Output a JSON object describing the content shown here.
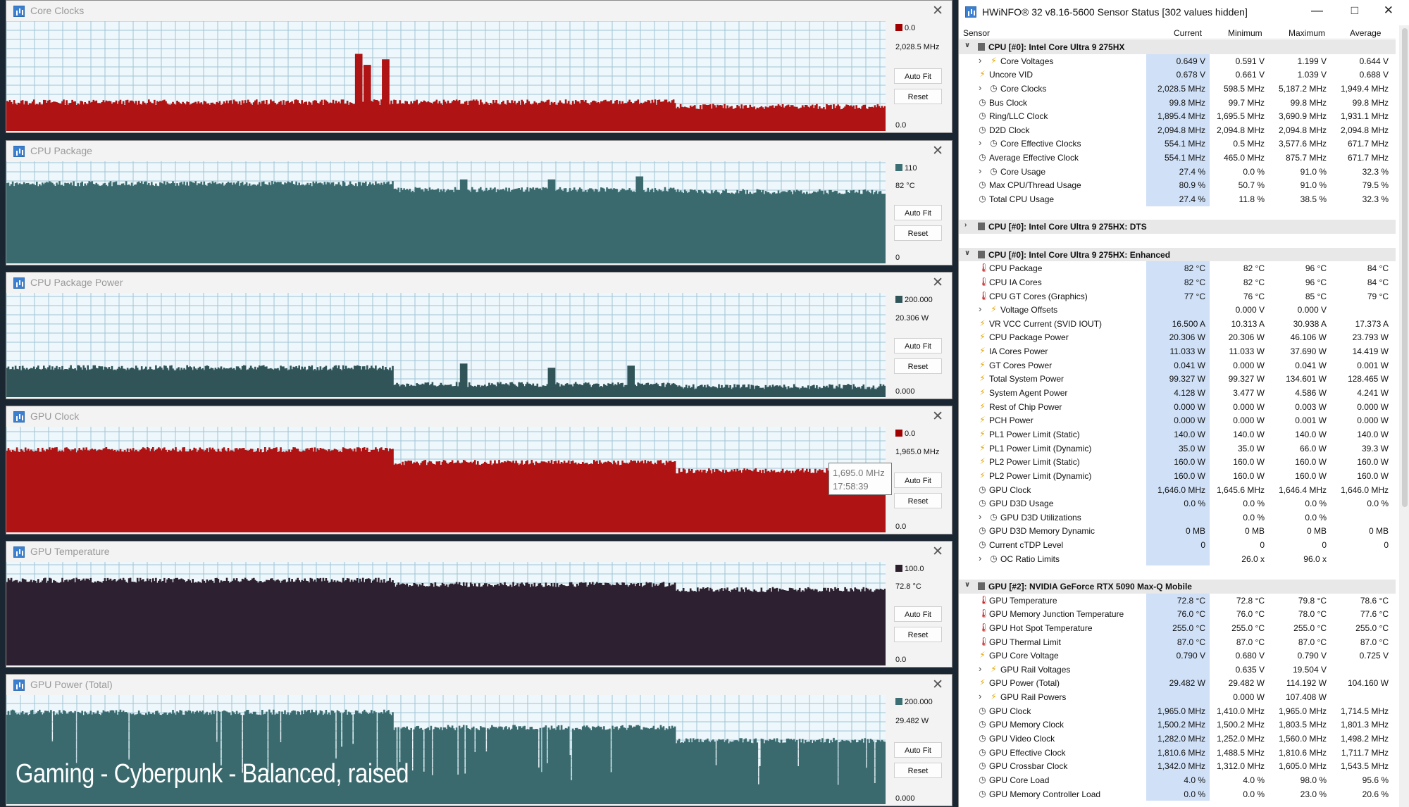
{
  "graphs": [
    {
      "id": "g1",
      "title": "Core Clocks",
      "color": "#a80d0d",
      "fill": "#b01313",
      "bg": "#a0c4d6",
      "max": "0.0",
      "current": "2,028.5 MHz",
      "min": "0.0",
      "swatch": "#a00000",
      "levels": [
        0.26,
        0.26,
        0.22
      ],
      "spikes": [
        [
          0.4,
          0.7
        ],
        [
          0.41,
          0.6
        ],
        [
          0.43,
          0.65
        ]
      ]
    },
    {
      "id": "g2",
      "title": "CPU Package",
      "color": "#3c6f73",
      "fill": "#3b6a6e",
      "bg": "#a0c4d6",
      "max": "110",
      "current": "82 °C",
      "min": "0",
      "swatch": "#3c6f73",
      "levels": [
        0.78,
        0.72,
        0.7
      ],
      "spikes": [
        [
          0.52,
          0.82
        ],
        [
          0.62,
          0.82
        ],
        [
          0.72,
          0.85
        ]
      ]
    },
    {
      "id": "g3",
      "title": "CPU Package Power",
      "color": "#2f5559",
      "fill": "#305458",
      "bg": "#a0c4d6",
      "max": "200.000",
      "current": "20.306 W",
      "min": "0.000",
      "swatch": "#2f5559",
      "levels": [
        0.28,
        0.12,
        0.1
      ],
      "spikes": [
        [
          0.52,
          0.32
        ],
        [
          0.62,
          0.28
        ],
        [
          0.71,
          0.3
        ]
      ]
    },
    {
      "id": "g4",
      "title": "GPU Clock",
      "color": "#a80d0d",
      "fill": "#b01313",
      "bg": "#a0c4d6",
      "max": "0.0",
      "current": "1,965.0 MHz",
      "min": "0.0",
      "swatch": "#a00000",
      "levels": [
        0.78,
        0.66,
        0.58
      ],
      "spikes": []
    },
    {
      "id": "g5",
      "title": "GPU Temperature",
      "color": "#2c1f2c",
      "fill": "#2d2030",
      "bg": "#a0c4d6",
      "max": "100.0",
      "current": "72.8 °C",
      "min": "0.0",
      "swatch": "#2c1f2c",
      "levels": [
        0.82,
        0.78,
        0.73
      ],
      "spikes": []
    },
    {
      "id": "g6",
      "title": "GPU Power (Total)",
      "color": "#3c6f73",
      "fill": "#3b6a6e",
      "bg": "#a0c4d6",
      "max": "200.000",
      "current": "29.482 W",
      "min": "0.000",
      "swatch": "#3c6f73",
      "levels": [
        0.84,
        0.7,
        0.58
      ],
      "spikes": []
    }
  ],
  "buttons": {
    "autofit": "Auto Fit",
    "reset": "Reset"
  },
  "overlay_text": "Gaming - Cyberpunk - Balanced, raised",
  "tooltip": {
    "value": "1,695.0 MHz",
    "time": "17:58:39"
  },
  "sensor_window": {
    "title": "HWiNFO® 32 v8.16-5600 Sensor Status [302 values hidden]",
    "columns": {
      "sensor": "Sensor",
      "current": "Current",
      "minimum": "Minimum",
      "maximum": "Maximum",
      "average": "Average"
    },
    "rows": [
      {
        "t": "hdr",
        "exp": "v",
        "name": "CPU [#0]: Intel Core Ultra 9 275HX"
      },
      {
        "t": "row",
        "exp": ">",
        "icon": "bolt",
        "indent": 2,
        "name": "Core Voltages",
        "cur": "0.649 V",
        "min": "0.591 V",
        "max": "1.199 V",
        "avg": "0.644 V"
      },
      {
        "t": "row",
        "icon": "bolt",
        "indent": 1,
        "name": "Uncore VID",
        "cur": "0.678 V",
        "min": "0.661 V",
        "max": "1.039 V",
        "avg": "0.688 V"
      },
      {
        "t": "row",
        "exp": ">",
        "icon": "clock",
        "indent": 2,
        "name": "Core Clocks",
        "cur": "2,028.5 MHz",
        "min": "598.5 MHz",
        "max": "5,187.2 MHz",
        "avg": "1,949.4 MHz"
      },
      {
        "t": "row",
        "icon": "clock",
        "indent": 1,
        "name": "Bus Clock",
        "cur": "99.8 MHz",
        "min": "99.7 MHz",
        "max": "99.8 MHz",
        "avg": "99.8 MHz"
      },
      {
        "t": "row",
        "icon": "clock",
        "indent": 1,
        "name": "Ring/LLC Clock",
        "cur": "1,895.4 MHz",
        "min": "1,695.5 MHz",
        "max": "3,690.9 MHz",
        "avg": "1,931.1 MHz"
      },
      {
        "t": "row",
        "icon": "clock",
        "indent": 1,
        "name": "D2D Clock",
        "cur": "2,094.8 MHz",
        "min": "2,094.8 MHz",
        "max": "2,094.8 MHz",
        "avg": "2,094.8 MHz"
      },
      {
        "t": "row",
        "exp": ">",
        "icon": "clock",
        "indent": 2,
        "name": "Core Effective Clocks",
        "cur": "554.1 MHz",
        "min": "0.5 MHz",
        "max": "3,577.6 MHz",
        "avg": "671.7 MHz"
      },
      {
        "t": "row",
        "icon": "clock",
        "indent": 1,
        "name": "Average Effective Clock",
        "cur": "554.1 MHz",
        "min": "465.0 MHz",
        "max": "875.7 MHz",
        "avg": "671.7 MHz"
      },
      {
        "t": "row",
        "exp": ">",
        "icon": "clock",
        "indent": 2,
        "name": "Core Usage",
        "cur": "27.4 %",
        "min": "0.0 %",
        "max": "91.0 %",
        "avg": "32.3 %"
      },
      {
        "t": "row",
        "icon": "clock",
        "indent": 1,
        "name": "Max CPU/Thread Usage",
        "cur": "80.9 %",
        "min": "50.7 %",
        "max": "91.0 %",
        "avg": "79.5 %"
      },
      {
        "t": "row",
        "icon": "clock",
        "indent": 1,
        "name": "Total CPU Usage",
        "cur": "27.4 %",
        "min": "11.8 %",
        "max": "38.5 %",
        "avg": "32.3 %"
      },
      {
        "t": "blank"
      },
      {
        "t": "hdr",
        "exp": ">",
        "name": "CPU [#0]: Intel Core Ultra 9 275HX: DTS"
      },
      {
        "t": "blank"
      },
      {
        "t": "hdr",
        "exp": "v",
        "name": "CPU [#0]: Intel Core Ultra 9 275HX: Enhanced"
      },
      {
        "t": "row",
        "icon": "therm",
        "indent": 1,
        "name": "CPU Package",
        "cur": "82 °C",
        "min": "82 °C",
        "max": "96 °C",
        "avg": "84 °C"
      },
      {
        "t": "row",
        "icon": "therm",
        "indent": 1,
        "name": "CPU IA Cores",
        "cur": "82 °C",
        "min": "82 °C",
        "max": "96 °C",
        "avg": "84 °C"
      },
      {
        "t": "row",
        "icon": "therm",
        "indent": 1,
        "name": "CPU GT Cores (Graphics)",
        "cur": "77 °C",
        "min": "76 °C",
        "max": "85 °C",
        "avg": "79 °C"
      },
      {
        "t": "row",
        "exp": ">",
        "icon": "bolt",
        "indent": 2,
        "name": "Voltage Offsets",
        "cur": "",
        "min": "0.000 V",
        "max": "0.000 V",
        "avg": ""
      },
      {
        "t": "row",
        "icon": "bolt",
        "indent": 1,
        "name": "VR VCC Current (SVID IOUT)",
        "cur": "16.500 A",
        "min": "10.313 A",
        "max": "30.938 A",
        "avg": "17.373 A"
      },
      {
        "t": "row",
        "icon": "bolt",
        "indent": 1,
        "name": "CPU Package Power",
        "cur": "20.306 W",
        "min": "20.306 W",
        "max": "46.106 W",
        "avg": "23.793 W"
      },
      {
        "t": "row",
        "icon": "bolt",
        "indent": 1,
        "name": "IA Cores Power",
        "cur": "11.033 W",
        "min": "11.033 W",
        "max": "37.690 W",
        "avg": "14.419 W"
      },
      {
        "t": "row",
        "icon": "bolt",
        "indent": 1,
        "name": "GT Cores Power",
        "cur": "0.041 W",
        "min": "0.000 W",
        "max": "0.041 W",
        "avg": "0.001 W"
      },
      {
        "t": "row",
        "icon": "bolt",
        "indent": 1,
        "name": "Total System Power",
        "cur": "99.327 W",
        "min": "99.327 W",
        "max": "134.601 W",
        "avg": "128.465 W"
      },
      {
        "t": "row",
        "icon": "bolt",
        "indent": 1,
        "name": "System Agent Power",
        "cur": "4.128 W",
        "min": "3.477 W",
        "max": "4.586 W",
        "avg": "4.241 W"
      },
      {
        "t": "row",
        "icon": "bolt",
        "indent": 1,
        "name": "Rest of Chip Power",
        "cur": "0.000 W",
        "min": "0.000 W",
        "max": "0.003 W",
        "avg": "0.000 W"
      },
      {
        "t": "row",
        "icon": "bolt",
        "indent": 1,
        "name": "PCH Power",
        "cur": "0.000 W",
        "min": "0.000 W",
        "max": "0.001 W",
        "avg": "0.000 W"
      },
      {
        "t": "row",
        "icon": "bolt",
        "indent": 1,
        "name": "PL1 Power Limit (Static)",
        "cur": "140.0 W",
        "min": "140.0 W",
        "max": "140.0 W",
        "avg": "140.0 W"
      },
      {
        "t": "row",
        "icon": "bolt",
        "indent": 1,
        "name": "PL1 Power Limit (Dynamic)",
        "cur": "35.0 W",
        "min": "35.0 W",
        "max": "66.0 W",
        "avg": "39.3 W"
      },
      {
        "t": "row",
        "icon": "bolt",
        "indent": 1,
        "name": "PL2 Power Limit (Static)",
        "cur": "160.0 W",
        "min": "160.0 W",
        "max": "160.0 W",
        "avg": "160.0 W"
      },
      {
        "t": "row",
        "icon": "bolt",
        "indent": 1,
        "name": "PL2 Power Limit (Dynamic)",
        "cur": "160.0 W",
        "min": "160.0 W",
        "max": "160.0 W",
        "avg": "160.0 W"
      },
      {
        "t": "row",
        "icon": "clock",
        "indent": 1,
        "name": "GPU Clock",
        "cur": "1,646.0 MHz",
        "min": "1,645.6 MHz",
        "max": "1,646.4 MHz",
        "avg": "1,646.0 MHz"
      },
      {
        "t": "row",
        "icon": "clock",
        "indent": 1,
        "name": "GPU D3D Usage",
        "cur": "0.0 %",
        "min": "0.0 %",
        "max": "0.0 %",
        "avg": "0.0 %"
      },
      {
        "t": "row",
        "exp": ">",
        "icon": "clock",
        "indent": 2,
        "name": "GPU D3D Utilizations",
        "cur": "",
        "min": "0.0 %",
        "max": "0.0 %",
        "avg": ""
      },
      {
        "t": "row",
        "icon": "clock",
        "indent": 1,
        "name": "GPU D3D Memory Dynamic",
        "cur": "0 MB",
        "min": "0 MB",
        "max": "0 MB",
        "avg": "0 MB"
      },
      {
        "t": "row",
        "icon": "clock",
        "indent": 1,
        "name": "Current cTDP Level",
        "cur": "0",
        "min": "0",
        "max": "0",
        "avg": "0"
      },
      {
        "t": "row",
        "exp": ">",
        "icon": "clock",
        "indent": 2,
        "name": "OC Ratio Limits",
        "cur": "",
        "min": "26.0 x",
        "max": "96.0 x",
        "avg": ""
      },
      {
        "t": "blank"
      },
      {
        "t": "hdr",
        "exp": "v",
        "name": "GPU [#2]: NVIDIA GeForce RTX 5090 Max-Q Mobile"
      },
      {
        "t": "row",
        "icon": "therm",
        "indent": 1,
        "name": "GPU Temperature",
        "cur": "72.8 °C",
        "min": "72.8 °C",
        "max": "79.8 °C",
        "avg": "78.6 °C"
      },
      {
        "t": "row",
        "icon": "therm",
        "indent": 1,
        "name": "GPU Memory Junction Temperature",
        "cur": "76.0 °C",
        "min": "76.0 °C",
        "max": "78.0 °C",
        "avg": "77.6 °C"
      },
      {
        "t": "row",
        "icon": "therm",
        "indent": 1,
        "name": "GPU Hot Spot Temperature",
        "cur": "255.0 °C",
        "min": "255.0 °C",
        "max": "255.0 °C",
        "avg": "255.0 °C"
      },
      {
        "t": "row",
        "icon": "therm",
        "indent": 1,
        "name": "GPU Thermal Limit",
        "cur": "87.0 °C",
        "min": "87.0 °C",
        "max": "87.0 °C",
        "avg": "87.0 °C"
      },
      {
        "t": "row",
        "icon": "bolt",
        "indent": 1,
        "name": "GPU Core Voltage",
        "cur": "0.790 V",
        "min": "0.680 V",
        "max": "0.790 V",
        "avg": "0.725 V"
      },
      {
        "t": "row",
        "exp": ">",
        "icon": "bolt",
        "indent": 2,
        "name": "GPU Rail Voltages",
        "cur": "",
        "min": "0.635 V",
        "max": "19.504 V",
        "avg": ""
      },
      {
        "t": "row",
        "icon": "bolt",
        "indent": 1,
        "name": "GPU Power (Total)",
        "cur": "29.482 W",
        "min": "29.482 W",
        "max": "114.192 W",
        "avg": "104.160 W"
      },
      {
        "t": "row",
        "exp": ">",
        "icon": "bolt",
        "indent": 2,
        "name": "GPU Rail Powers",
        "cur": "",
        "min": "0.000 W",
        "max": "107.408 W",
        "avg": ""
      },
      {
        "t": "row",
        "icon": "clock",
        "indent": 1,
        "name": "GPU Clock",
        "cur": "1,965.0 MHz",
        "min": "1,410.0 MHz",
        "max": "1,965.0 MHz",
        "avg": "1,714.5 MHz"
      },
      {
        "t": "row",
        "icon": "clock",
        "indent": 1,
        "name": "GPU Memory Clock",
        "cur": "1,500.2 MHz",
        "min": "1,500.2 MHz",
        "max": "1,803.5 MHz",
        "avg": "1,801.3 MHz"
      },
      {
        "t": "row",
        "icon": "clock",
        "indent": 1,
        "name": "GPU Video Clock",
        "cur": "1,282.0 MHz",
        "min": "1,252.0 MHz",
        "max": "1,560.0 MHz",
        "avg": "1,498.2 MHz"
      },
      {
        "t": "row",
        "icon": "clock",
        "indent": 1,
        "name": "GPU Effective Clock",
        "cur": "1,810.6 MHz",
        "min": "1,488.5 MHz",
        "max": "1,810.6 MHz",
        "avg": "1,711.7 MHz"
      },
      {
        "t": "row",
        "icon": "clock",
        "indent": 1,
        "name": "GPU Crossbar Clock",
        "cur": "1,342.0 MHz",
        "min": "1,312.0 MHz",
        "max": "1,605.0 MHz",
        "avg": "1,543.5 MHz"
      },
      {
        "t": "row",
        "icon": "clock",
        "indent": 1,
        "name": "GPU Core Load",
        "cur": "4.0 %",
        "min": "4.0 %",
        "max": "98.0 %",
        "avg": "95.6 %"
      },
      {
        "t": "row",
        "icon": "clock",
        "indent": 1,
        "name": "GPU Memory Controller Load",
        "cur": "0.0 %",
        "min": "0.0 %",
        "max": "23.0 %",
        "avg": "20.6 %"
      }
    ]
  },
  "icons": {
    "title": "hwinfo-icon",
    "close": "close-icon",
    "minimize": "minimize-icon",
    "maximize": "maximize-icon",
    "bolt": "lightning-icon",
    "clock": "clock-icon",
    "therm": "thermometer-icon",
    "chip": "chip-icon"
  }
}
